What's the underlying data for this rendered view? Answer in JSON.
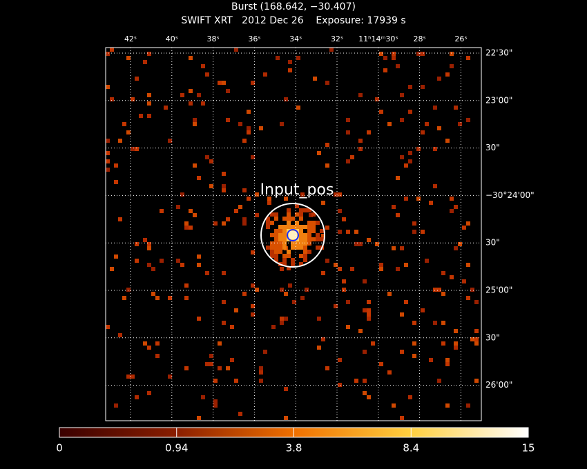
{
  "header": {
    "title": "Burst (168.642, −30.407)",
    "subtitle": "SWIFT XRT   2012 Dec 26    Exposure: 17939 s"
  },
  "image": {
    "top_labels": [
      "42ˢ",
      "40ˢ",
      "38ˢ",
      "36ˢ",
      "34ˢ",
      "32ˢ",
      "11ʰ14ᵐ30ˢ",
      "28ˢ",
      "26ˢ"
    ],
    "right_labels": [
      "22'30\"",
      "23'00\"",
      "30\"",
      "−30°24'00\"",
      "30\"",
      "25'00\"",
      "30\"",
      "26'00\""
    ],
    "annotation": "Input_pos"
  },
  "colorbar": {
    "labels": [
      "0",
      "0.94",
      "3.8",
      "8.4",
      "15"
    ]
  }
}
